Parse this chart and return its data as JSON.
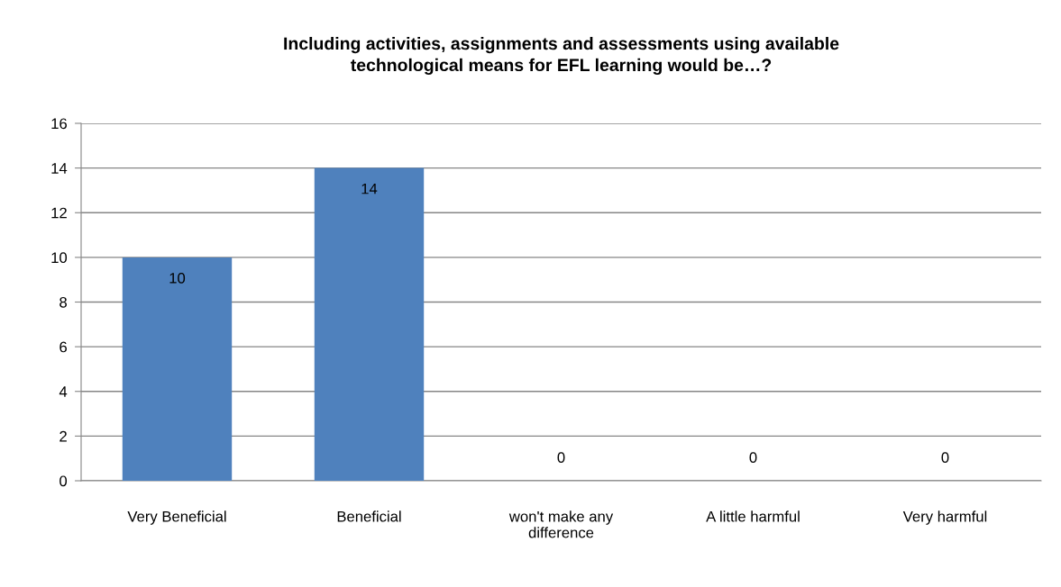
{
  "chart_data": {
    "type": "bar",
    "title": "Including activities, assignments and assessments using available\ntechnological means for EFL learning would be…?",
    "categories": [
      "Very Beneficial",
      "Beneficial",
      "won't make any\ndifference",
      "A little harmful",
      "Very harmful"
    ],
    "values": [
      10,
      14,
      0,
      0,
      0
    ],
    "color": "#4f81bd",
    "ylim": [
      0,
      16
    ],
    "yticks": [
      0,
      2,
      4,
      6,
      8,
      10,
      12,
      14,
      16
    ],
    "grid": "y",
    "data_labels": true
  }
}
